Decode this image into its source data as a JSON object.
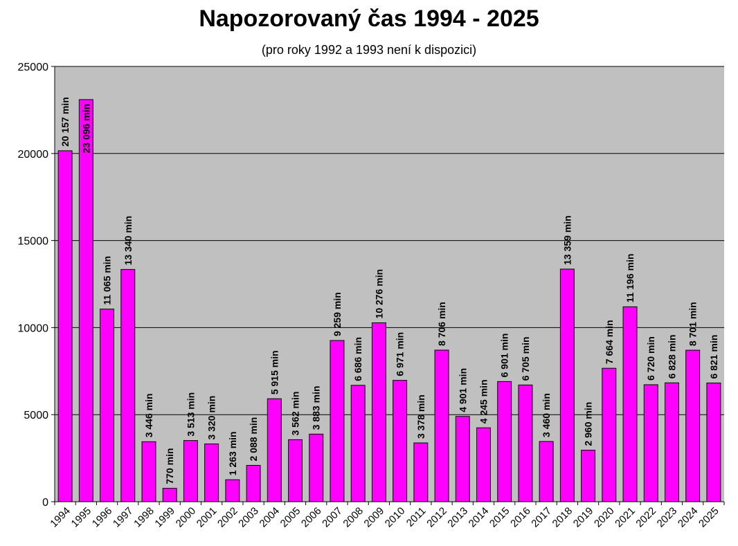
{
  "chart_data": {
    "type": "bar",
    "title": "Napozorovaný čas 1994 - 2025",
    "subtitle": "(pro roky 1992 a 1993 není k dispozici)",
    "xlabel": "",
    "ylabel": "",
    "ylim": [
      0,
      25000
    ],
    "yticks": [
      "0",
      "5000",
      "10000",
      "15000",
      "20000",
      "25000"
    ],
    "grid": true,
    "legend": "none",
    "categories": [
      "1994",
      "1995",
      "1996",
      "1997",
      "1998",
      "1999",
      "2000",
      "2001",
      "2002",
      "2003",
      "2004",
      "2005",
      "2006",
      "2007",
      "2008",
      "2009",
      "2010",
      "2011",
      "2012",
      "2013",
      "2014",
      "2015",
      "2016",
      "2017",
      "2018",
      "2019",
      "2020",
      "2021",
      "2022",
      "2023",
      "2024",
      "2025"
    ],
    "values": [
      20157,
      23096,
      11065,
      13340,
      3446,
      770,
      3513,
      3320,
      1263,
      2088,
      5915,
      3562,
      3883,
      9259,
      6686,
      10276,
      6971,
      3378,
      8706,
      4901,
      4245,
      6901,
      6705,
      3460,
      13359,
      2960,
      7664,
      11196,
      6720,
      6828,
      8701,
      6821
    ],
    "data_labels": [
      "20 157 min",
      "23 096 min",
      "11 065 min",
      "13 340 min",
      "3 446 min",
      "770 min",
      "3 513 min",
      "3 320 min",
      "1 263 min",
      "2 088 min",
      "5 915 min",
      "3 562 min",
      "3 883 min",
      "9 259 min",
      "6 686 min",
      "10 276 min",
      "6 971 min",
      "3 378 min",
      "8 706 min",
      "4 901 min",
      "4 245 min",
      "6 901 min",
      "6 705 min",
      "3 460 min",
      "13 359 min",
      "2 960 min",
      "7 664 min",
      "11 196 min",
      "6 720 min",
      "6 828 min",
      "8 701 min",
      "6 821 min"
    ],
    "colors": {
      "bar": "#ff00ff",
      "plot_bg": "#c0c0c0",
      "grid": "#000000"
    }
  }
}
